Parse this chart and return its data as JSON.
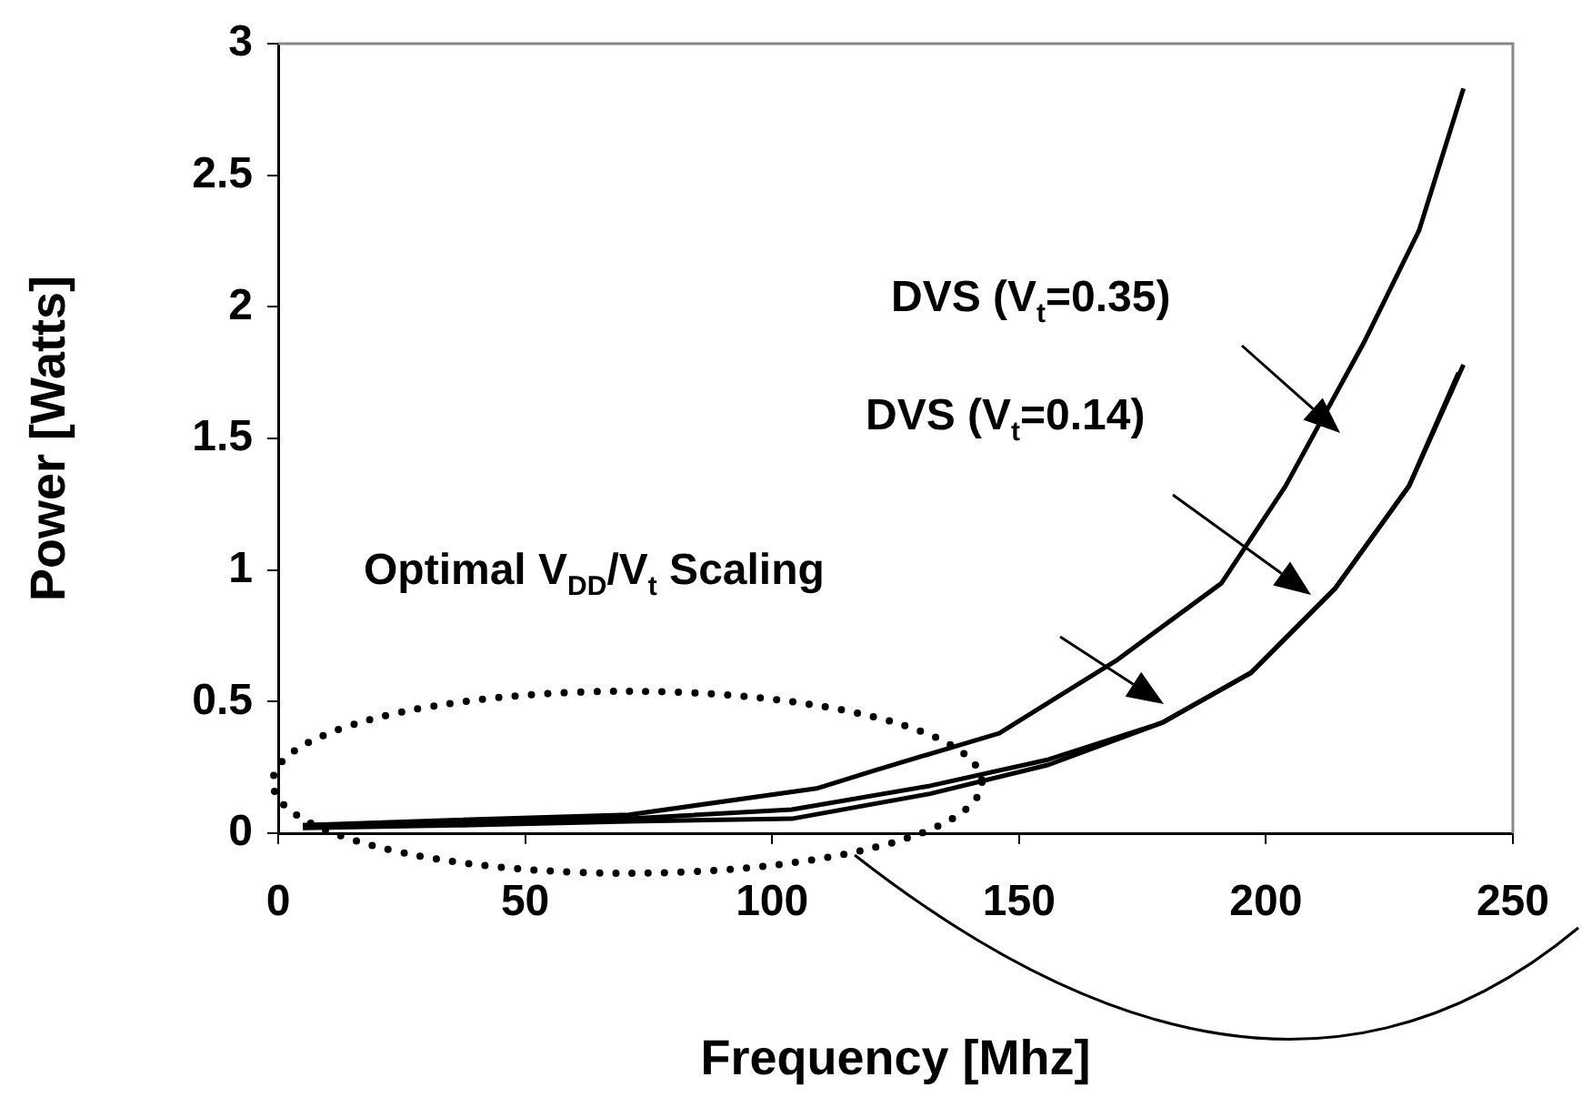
{
  "chart_data": {
    "type": "line",
    "xlabel": "Frequency [Mhz]",
    "ylabel": "Power [Watts]",
    "xlim": [
      0,
      250
    ],
    "xticks": [
      0,
      50,
      100,
      150,
      200,
      250
    ],
    "ylim": [
      0,
      3
    ],
    "yticks": [
      0,
      0.5,
      1,
      1.5,
      2,
      2.5,
      3
    ],
    "grid": false,
    "legend": false,
    "marker": "none",
    "line_style": "solid",
    "annotations": [
      "DVS (V$_{t}$=0.35)",
      "DVS (V$_{t}$=0.14)",
      "Optimal V$_{DD}$/V$_{t}$  Scaling"
    ],
    "series": [
      {
        "color": "#000000",
        "x": [
          5,
          36,
          71,
          109,
          121,
          146,
          170,
          191,
          204,
          220,
          231,
          240
        ],
        "values": [
          0.03,
          0.05,
          0.07,
          0.17,
          0.24,
          0.38,
          0.66,
          0.95,
          1.32,
          1.87,
          2.29,
          2.83
        ]
      },
      {
        "color": "#000000",
        "x": [
          5,
          36,
          71,
          104,
          132,
          156,
          179,
          197,
          214,
          229,
          240
        ],
        "values": [
          0.03,
          0.04,
          0.055,
          0.09,
          0.18,
          0.28,
          0.42,
          0.61,
          0.93,
          1.32,
          1.78
        ]
      },
      {
        "color": "#000000",
        "x": [
          5,
          36,
          71,
          104,
          132,
          156,
          179,
          197,
          214,
          229,
          239
        ],
        "values": [
          0.02,
          0.03,
          0.045,
          0.055,
          0.15,
          0.26,
          0.42,
          0.61,
          0.93,
          1.32,
          1.75
        ]
      }
    ]
  }
}
